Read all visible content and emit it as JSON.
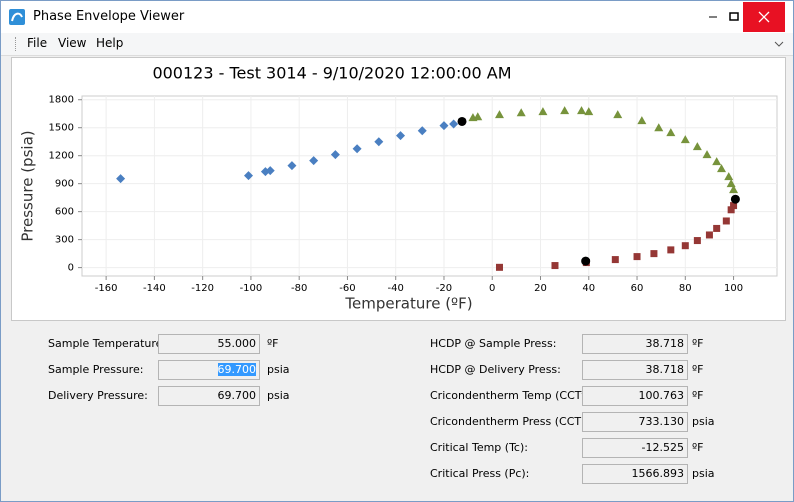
{
  "window": {
    "title": "Phase Envelope Viewer"
  },
  "menu": [
    "File",
    "View",
    "Help"
  ],
  "chart_data": {
    "type": "scatter",
    "title": "000123 - Test 3014 - 9/10/2020 12:00:00 AM",
    "x_label": "Temperature (ºF)",
    "y_label": "Pressure (psia)",
    "xlim": [
      -170,
      118
    ],
    "ylim": [
      -90,
      1840
    ],
    "xticks": [
      -160,
      -140,
      -120,
      -100,
      -80,
      -60,
      -40,
      -20,
      0,
      20,
      40,
      60,
      80,
      100
    ],
    "yticks": [
      0,
      300,
      600,
      900,
      1200,
      1500,
      1800
    ],
    "grid": true,
    "series": [
      {
        "color": "#4a7fc1",
        "marker": "diamond",
        "x": [
          -154,
          -101,
          -94,
          -92,
          -83,
          -74,
          -65,
          -56,
          -47,
          -38,
          -29,
          -20,
          -16
        ],
        "y": [
          954,
          986,
          1029,
          1040,
          1093,
          1147,
          1211,
          1275,
          1350,
          1415,
          1468,
          1522,
          1540
        ]
      },
      {
        "color": "#77933c",
        "marker": "triangle",
        "x": [
          -8,
          -6,
          3,
          12,
          21,
          30,
          37,
          40,
          52,
          62,
          69,
          74,
          80,
          85,
          89,
          93,
          95,
          98,
          99,
          100
        ],
        "y": [
          1608,
          1618,
          1640,
          1661,
          1672,
          1683,
          1683,
          1672,
          1640,
          1576,
          1500,
          1447,
          1372,
          1297,
          1211,
          1136,
          1061,
          975,
          900,
          836
        ]
      },
      {
        "color": "#953735",
        "marker": "square",
        "x": [
          100,
          99,
          97,
          93,
          90,
          85,
          80,
          74,
          67,
          60,
          51,
          39,
          26,
          3
        ],
        "y": [
          665,
          620,
          500,
          420,
          350,
          290,
          235,
          190,
          150,
          118,
          86,
          54,
          22,
          3
        ]
      },
      {
        "color": "#000000",
        "marker": "circle",
        "x": [
          -12.525,
          100.763,
          38.718
        ],
        "y": [
          1566.893,
          733.13,
          69.7
        ]
      }
    ]
  },
  "fields_left": [
    {
      "label": "Sample Temperature:",
      "value": "55.000",
      "unit": "ºF"
    },
    {
      "label": "Sample Pressure:",
      "value": "69.700",
      "unit": "psia",
      "selected": true
    },
    {
      "label": "Delivery Pressure:",
      "value": "69.700",
      "unit": "psia"
    }
  ],
  "fields_right": [
    {
      "label": "HCDP @ Sample Press:",
      "value": "38.718",
      "unit": "ºF"
    },
    {
      "label": "HCDP @ Delivery Press:",
      "value": "38.718",
      "unit": "ºF"
    },
    {
      "label": "Cricondentherm Temp (CCTt):",
      "value": "100.763",
      "unit": "ºF"
    },
    {
      "label": "Cricondentherm Press (CCTp):",
      "value": "733.130",
      "unit": "psia"
    },
    {
      "label": "Critical Temp (Tc):",
      "value": "-12.525",
      "unit": "ºF"
    },
    {
      "label": "Critical Press (Pc):",
      "value": "1566.893",
      "unit": "psia"
    }
  ]
}
